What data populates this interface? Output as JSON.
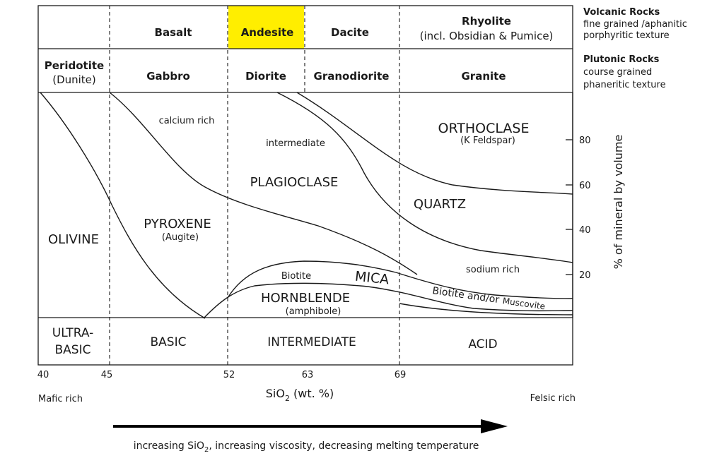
{
  "rock_rows": {
    "volcanic": {
      "rocks": [
        "Basalt",
        "Andesite",
        "Dacite"
      ],
      "rhyolite": {
        "name": "Rhyolite",
        "note": "(incl. Obsidian & Pumice)"
      },
      "highlighted": "Andesite",
      "highlight_color": "#ffee00",
      "label": {
        "title": "Volcanic Rocks",
        "line1": "fine grained /aphanitic",
        "line2": "porphyritic texture"
      }
    },
    "plutonic": {
      "peridotite": {
        "name": "Peridotite",
        "note": "(Dunite)"
      },
      "rocks": [
        "Gabbro",
        "Diorite",
        "Granodiorite",
        "Granite"
      ],
      "label": {
        "title": "Plutonic Rocks",
        "line1": "course grained",
        "line2": "phaneritic texture"
      }
    }
  },
  "minerals": {
    "orthoclase": {
      "name": "ORTHOCLASE",
      "note": "(K Feldspar)"
    },
    "plagioclase": "PLAGIOCLASE",
    "calcium_rich": "calcium rich",
    "intermediate": "intermediate",
    "sodium_rich": "sodium rich",
    "quartz": "QUARTZ",
    "olivine": "OLIVINE",
    "pyroxene": {
      "name": "PYROXENE",
      "note": "(Augite)"
    },
    "mica": "MICA",
    "biotite": "Biotite",
    "hornblende": {
      "name": "HORNBLENDE",
      "note": "(amphibole)"
    },
    "biotite_muscovite": {
      "part1": "Biotite and/or",
      "part2": "Muscovite"
    }
  },
  "composition_classes": {
    "ultra_basic": {
      "line1": "ULTRA-",
      "line2": "BASIC"
    },
    "basic": "BASIC",
    "intermediate": "INTERMEDIATE",
    "acid": "ACID"
  },
  "sio2_axis": {
    "ticks": [
      "40",
      "45",
      "52",
      "63",
      "69"
    ],
    "label": {
      "main": "SiO",
      "sub": "2",
      "rest": " (wt. %)"
    },
    "left_end": "Mafic rich",
    "right_end": "Felsic rich"
  },
  "volume_axis": {
    "label": "% of mineral by volume",
    "ticks": [
      "80",
      "60",
      "40",
      "20"
    ]
  },
  "trend": {
    "part1": "increasing SiO",
    "sub": "2",
    "part2": ", increasing viscosity, decreasing melting temperature"
  }
}
